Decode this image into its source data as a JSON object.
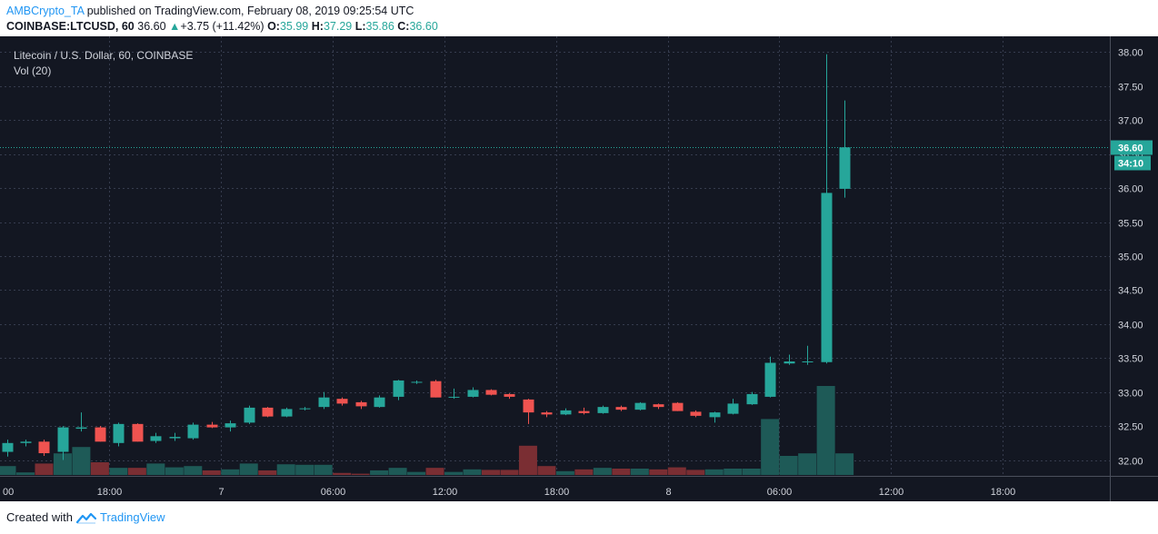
{
  "header": {
    "author": "AMBCrypto_TA",
    "published_text": "published on TradingView.com, February 08, 2019 09:25:54 UTC"
  },
  "ticker": {
    "symbol": "COINBASE:LTCUSD, 60",
    "last": "36.60",
    "change": "+3.75 (+11.42%)",
    "o_label": "O:",
    "o": "35.99",
    "h_label": "H:",
    "h": "37.29",
    "l_label": "L:",
    "l": "35.86",
    "c_label": "C:",
    "c": "36.60"
  },
  "footer": {
    "created_with": "Created with",
    "brand": "TradingView"
  },
  "colors": {
    "bg": "#131722",
    "grid": "#363c4e",
    "up": "#26a69a",
    "down": "#ef5350",
    "text": "#d1d4dc",
    "vol_up": "#1e5a57",
    "vol_down": "#7a2e33"
  },
  "chart_data": {
    "type": "candlestick",
    "title": "Litecoin / U.S. Dollar, 60, COINBASE",
    "volume_label": "Vol (20)",
    "ylim": [
      31.9,
      38.1
    ],
    "y_ticks": [
      "32.00",
      "32.50",
      "33.00",
      "33.50",
      "34.00",
      "34.50",
      "35.00",
      "35.50",
      "36.00",
      "36.50",
      "37.00",
      "37.50",
      "38.00"
    ],
    "x_ticks": [
      {
        "index": -0.5,
        "label": "00"
      },
      {
        "index": 5.5,
        "label": "18:00"
      },
      {
        "index": 11.5,
        "label": "7"
      },
      {
        "index": 17.5,
        "label": "06:00"
      },
      {
        "index": 23.5,
        "label": "12:00"
      },
      {
        "index": 29.5,
        "label": "18:00"
      },
      {
        "index": 35.5,
        "label": "8"
      },
      {
        "index": 41.5,
        "label": "06:00"
      },
      {
        "index": 47.5,
        "label": "12:00"
      },
      {
        "index": 53.5,
        "label": "18:00"
      }
    ],
    "last_price_label": "36.60",
    "countdown_label": "34:10",
    "last_price": 36.6,
    "candles": [
      {
        "o": 32.12,
        "h": 32.3,
        "l": 32.05,
        "c": 32.25,
        "v": 0.35
      },
      {
        "o": 32.25,
        "h": 32.3,
        "l": 32.2,
        "c": 32.27,
        "v": 0.1
      },
      {
        "o": 32.27,
        "h": 32.3,
        "l": 32.06,
        "c": 32.1,
        "v": 0.45
      },
      {
        "o": 32.12,
        "h": 32.5,
        "l": 32.0,
        "c": 32.48,
        "v": 0.85
      },
      {
        "o": 32.46,
        "h": 32.7,
        "l": 32.42,
        "c": 32.48,
        "v": 1.1
      },
      {
        "o": 32.48,
        "h": 32.5,
        "l": 32.27,
        "c": 32.27,
        "v": 0.5
      },
      {
        "o": 32.25,
        "h": 32.55,
        "l": 32.2,
        "c": 32.53,
        "v": 0.28
      },
      {
        "o": 32.53,
        "h": 32.54,
        "l": 32.27,
        "c": 32.27,
        "v": 0.28
      },
      {
        "o": 32.28,
        "h": 32.4,
        "l": 32.25,
        "c": 32.35,
        "v": 0.45
      },
      {
        "o": 32.32,
        "h": 32.4,
        "l": 32.28,
        "c": 32.34,
        "v": 0.3
      },
      {
        "o": 32.32,
        "h": 32.55,
        "l": 32.3,
        "c": 32.52,
        "v": 0.35
      },
      {
        "o": 32.52,
        "h": 32.56,
        "l": 32.47,
        "c": 32.48,
        "v": 0.18
      },
      {
        "o": 32.48,
        "h": 32.58,
        "l": 32.42,
        "c": 32.54,
        "v": 0.22
      },
      {
        "o": 32.55,
        "h": 32.8,
        "l": 32.53,
        "c": 32.77,
        "v": 0.45
      },
      {
        "o": 32.77,
        "h": 32.78,
        "l": 32.63,
        "c": 32.64,
        "v": 0.18
      },
      {
        "o": 32.64,
        "h": 32.77,
        "l": 32.63,
        "c": 32.75,
        "v": 0.42
      },
      {
        "o": 32.75,
        "h": 32.78,
        "l": 32.73,
        "c": 32.76,
        "v": 0.4
      },
      {
        "o": 32.78,
        "h": 33.0,
        "l": 32.75,
        "c": 32.92,
        "v": 0.4
      },
      {
        "o": 32.9,
        "h": 32.92,
        "l": 32.8,
        "c": 32.83,
        "v": 0.08
      },
      {
        "o": 32.85,
        "h": 32.87,
        "l": 32.75,
        "c": 32.79,
        "v": 0.05
      },
      {
        "o": 32.78,
        "h": 32.95,
        "l": 32.77,
        "c": 32.92,
        "v": 0.18
      },
      {
        "o": 32.93,
        "h": 33.18,
        "l": 32.88,
        "c": 33.17,
        "v": 0.28
      },
      {
        "o": 33.14,
        "h": 33.17,
        "l": 33.12,
        "c": 33.15,
        "v": 0.12
      },
      {
        "o": 33.16,
        "h": 33.18,
        "l": 32.92,
        "c": 32.92,
        "v": 0.28
      },
      {
        "o": 32.93,
        "h": 33.05,
        "l": 32.9,
        "c": 32.93,
        "v": 0.12
      },
      {
        "o": 32.93,
        "h": 33.07,
        "l": 32.92,
        "c": 33.03,
        "v": 0.22
      },
      {
        "o": 33.03,
        "h": 33.04,
        "l": 32.95,
        "c": 32.96,
        "v": 0.2
      },
      {
        "o": 32.97,
        "h": 32.98,
        "l": 32.9,
        "c": 32.93,
        "v": 0.2
      },
      {
        "o": 32.89,
        "h": 32.9,
        "l": 32.53,
        "c": 32.7,
        "v": 1.15
      },
      {
        "o": 32.7,
        "h": 32.72,
        "l": 32.63,
        "c": 32.67,
        "v": 0.35
      },
      {
        "o": 32.67,
        "h": 32.76,
        "l": 32.66,
        "c": 32.73,
        "v": 0.15
      },
      {
        "o": 32.72,
        "h": 32.77,
        "l": 32.67,
        "c": 32.69,
        "v": 0.22
      },
      {
        "o": 32.69,
        "h": 32.8,
        "l": 32.68,
        "c": 32.78,
        "v": 0.28
      },
      {
        "o": 32.78,
        "h": 32.8,
        "l": 32.72,
        "c": 32.74,
        "v": 0.25
      },
      {
        "o": 32.74,
        "h": 32.85,
        "l": 32.73,
        "c": 32.84,
        "v": 0.25
      },
      {
        "o": 32.82,
        "h": 32.83,
        "l": 32.75,
        "c": 32.78,
        "v": 0.22
      },
      {
        "o": 32.84,
        "h": 32.85,
        "l": 32.72,
        "c": 32.72,
        "v": 0.3
      },
      {
        "o": 32.71,
        "h": 32.73,
        "l": 32.63,
        "c": 32.65,
        "v": 0.2
      },
      {
        "o": 32.63,
        "h": 32.71,
        "l": 32.55,
        "c": 32.7,
        "v": 0.22
      },
      {
        "o": 32.68,
        "h": 32.9,
        "l": 32.67,
        "c": 32.83,
        "v": 0.25
      },
      {
        "o": 32.82,
        "h": 33.0,
        "l": 32.81,
        "c": 32.97,
        "v": 0.25
      },
      {
        "o": 32.93,
        "h": 33.52,
        "l": 32.92,
        "c": 33.43,
        "v": 2.2
      },
      {
        "o": 33.42,
        "h": 33.55,
        "l": 33.4,
        "c": 33.45,
        "v": 0.75
      },
      {
        "o": 33.44,
        "h": 33.68,
        "l": 33.4,
        "c": 33.45,
        "v": 0.85
      },
      {
        "o": 33.44,
        "h": 37.97,
        "l": 33.42,
        "c": 35.93,
        "v": 3.5
      },
      {
        "o": 35.99,
        "h": 37.29,
        "l": 35.86,
        "c": 36.6,
        "v": 0.85
      }
    ]
  }
}
